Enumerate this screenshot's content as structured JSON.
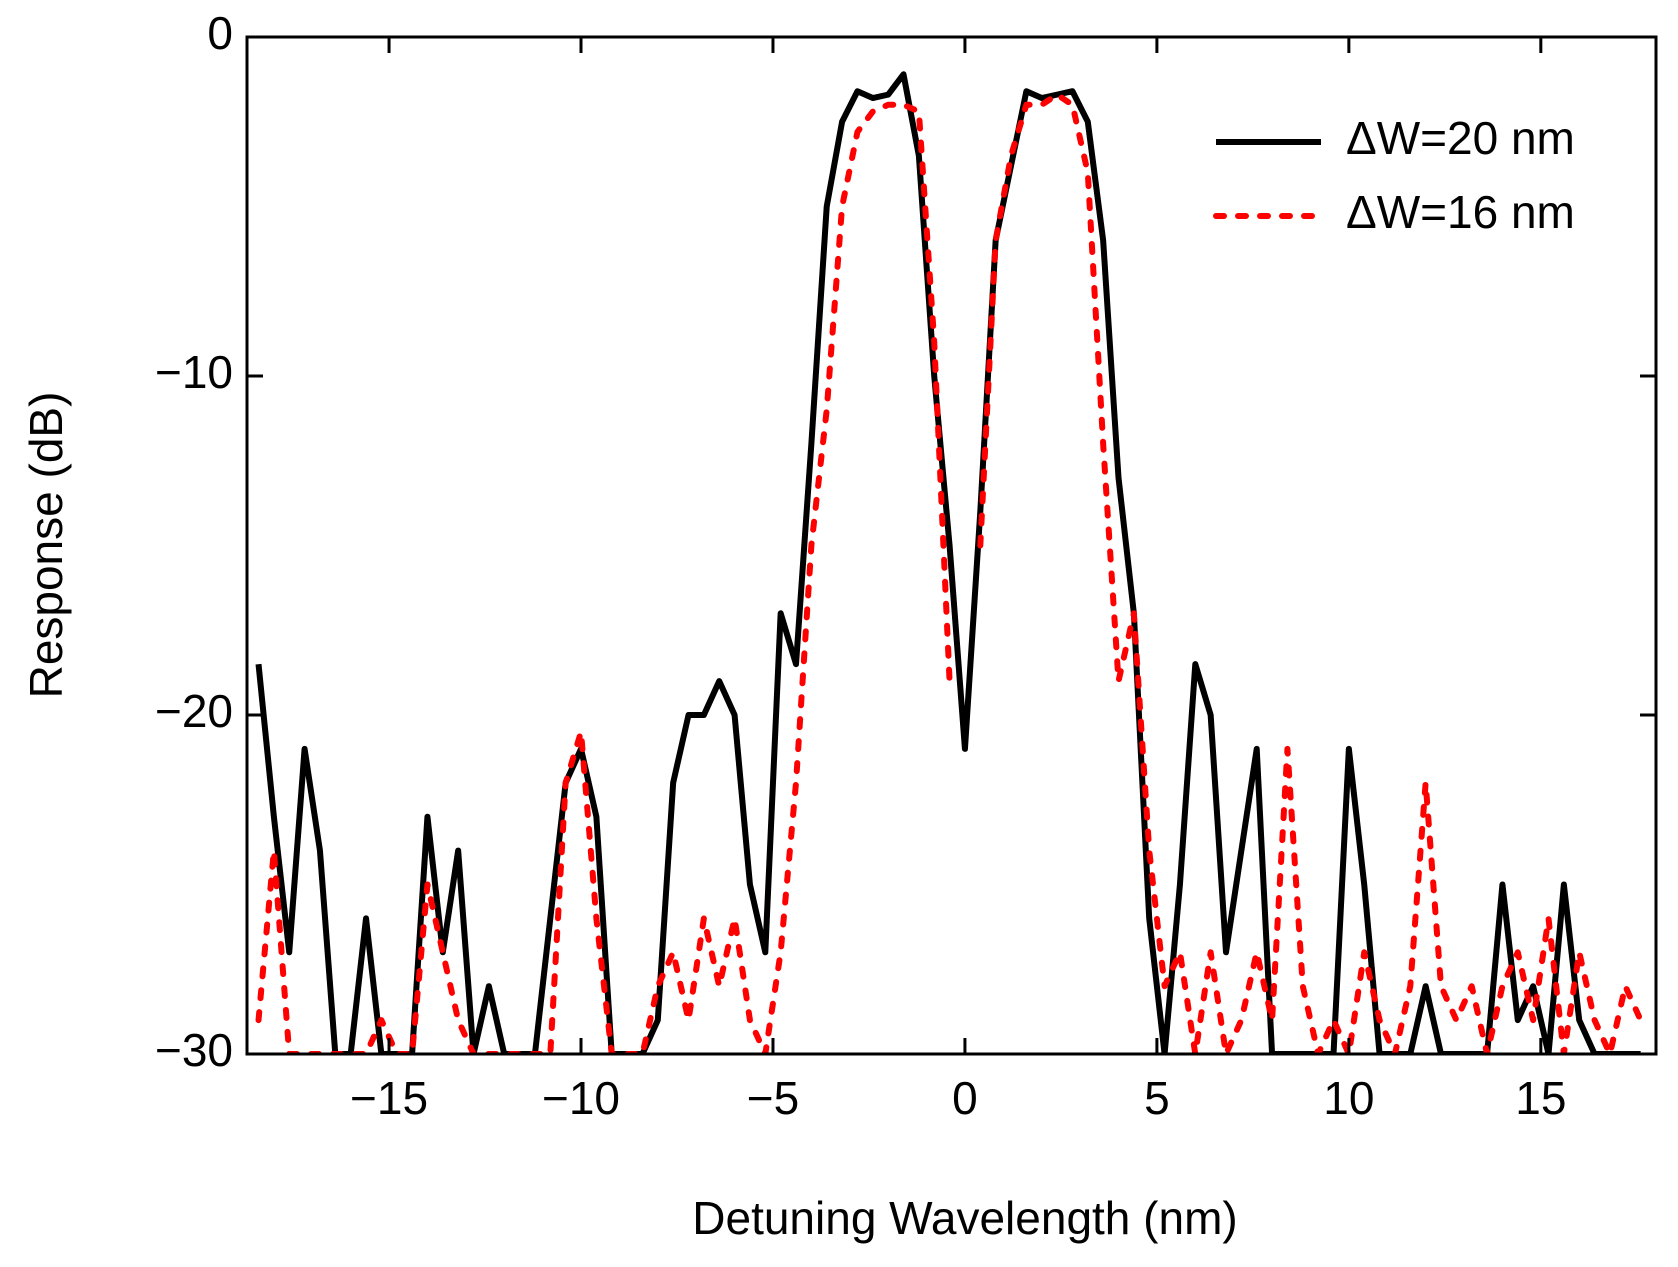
{
  "chart_data": {
    "type": "line",
    "x_label": "Detuning Wavelength (nm)",
    "y_label": "Response (dB)",
    "x": [
      -18.4,
      -18.0,
      -17.6,
      -17.2,
      -16.8,
      -16.4,
      -16.0,
      -15.6,
      -15.2,
      -14.8,
      -14.4,
      -14.0,
      -13.6,
      -13.2,
      -12.8,
      -12.4,
      -12.0,
      -11.6,
      -11.2,
      -10.8,
      -10.4,
      -10.0,
      -9.6,
      -9.2,
      -8.8,
      -8.4,
      -8.0,
      -7.6,
      -7.2,
      -6.8,
      -6.4,
      -6.0,
      -5.6,
      -5.2,
      -4.8,
      -4.4,
      -4.0,
      -3.6,
      -3.2,
      -2.8,
      -2.4,
      -2.0,
      -1.6,
      -1.2,
      -0.8,
      -0.4,
      0.0,
      0.4,
      0.8,
      1.2,
      1.6,
      2.0,
      2.4,
      2.8,
      3.2,
      3.6,
      4.0,
      4.4,
      4.8,
      5.2,
      5.6,
      6.0,
      6.4,
      6.8,
      7.2,
      7.6,
      8.0,
      8.4,
      8.8,
      9.2,
      9.6,
      10.0,
      10.4,
      10.8,
      11.2,
      11.6,
      12.0,
      12.4,
      12.8,
      13.2,
      13.6,
      14.0,
      14.4,
      14.8,
      15.2,
      15.6,
      16.0,
      16.4,
      16.8,
      17.2,
      17.6
    ],
    "series": [
      {
        "name": "ΔW=20 nm",
        "color": "#000000",
        "line_style": "solid",
        "values": [
          -18.5,
          -23,
          -27,
          -21,
          -24,
          -30,
          -30,
          -26,
          -30,
          -30,
          -30,
          -23,
          -27,
          -24,
          -30,
          -28,
          -30,
          -30,
          -30,
          -26,
          -22,
          -21,
          -23,
          -30,
          -30,
          -30,
          -29,
          -22,
          -20,
          -20,
          -19,
          -20,
          -25,
          -27,
          -17,
          -18.5,
          -12,
          -5,
          -2.5,
          -1.6,
          -1.8,
          -1.7,
          -1.1,
          -3.5,
          -10,
          -15,
          -21,
          -14,
          -6,
          -3.8,
          -1.6,
          -1.8,
          -1.7,
          -1.6,
          -2.5,
          -6,
          -13,
          -17,
          -26,
          -30,
          -25,
          -18.5,
          -20,
          -27,
          -24,
          -21,
          -30,
          -30,
          -30,
          -30,
          -30,
          -21,
          -25,
          -30,
          -30,
          -30,
          -28,
          -30,
          -30,
          -30,
          -30,
          -25,
          -29,
          -28,
          -30,
          -25,
          -29,
          -30,
          -30,
          -30,
          -30
        ]
      },
      {
        "name": "ΔW=16 nm",
        "color": "#ff0000",
        "line_style": "dotted",
        "values": [
          -29,
          -24,
          -30,
          -30,
          -30,
          -30,
          -30,
          -30,
          -29,
          -30,
          -30,
          -25,
          -27,
          -29,
          -30,
          -30,
          -30,
          -30,
          -30,
          -30,
          -22,
          -20.5,
          -26,
          -30,
          -30,
          -30,
          -28,
          -27,
          -29,
          -26,
          -28,
          -26,
          -29,
          -30,
          -27,
          -22,
          -15,
          -11,
          -5,
          -2.8,
          -2.2,
          -2.0,
          -2.0,
          -2.2,
          -9,
          -19,
          null,
          -15,
          -6,
          -3.5,
          -2,
          -2.0,
          -1.7,
          -2,
          -4,
          -12,
          -19,
          -17,
          -24,
          -28,
          -27,
          -30,
          -27,
          -30,
          -29,
          -27,
          -29,
          -21,
          -28,
          -30,
          -29,
          -30,
          -27,
          -29,
          -30,
          -28,
          -22,
          -28,
          -29,
          -28,
          -30,
          -28,
          -27,
          -29,
          -26,
          -30,
          -27,
          -29,
          -30,
          -28,
          -29
        ]
      }
    ],
    "xlim": [
      -18.7,
      18
    ],
    "ylim": [
      -30,
      0
    ],
    "xticks": [
      {
        "value": -15,
        "label": "−15"
      },
      {
        "value": -10,
        "label": "−10"
      },
      {
        "value": -5,
        "label": "−5"
      },
      0,
      5,
      10,
      15
    ],
    "yticks": [
      0,
      {
        "value": -10,
        "label": "−10"
      },
      {
        "value": -20,
        "label": "−20"
      },
      {
        "value": -30,
        "label": "−30"
      }
    ],
    "legend": "upper right"
  }
}
